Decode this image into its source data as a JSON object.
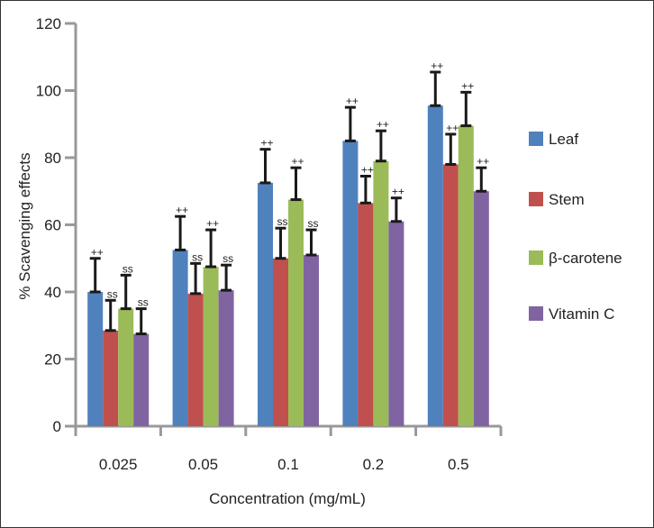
{
  "chart_data": {
    "type": "bar",
    "title": "",
    "xlabel": "Concentration (mg/mL)",
    "ylabel": "% Scavenging effects",
    "ylim": [
      0,
      120
    ],
    "yticks": [
      0,
      20,
      40,
      60,
      80,
      100,
      120
    ],
    "categories": [
      "0.025",
      "0.05",
      "0.1",
      "0.2",
      "0.5"
    ],
    "grid": false,
    "legend_position": "right",
    "series": [
      {
        "name": "Leaf",
        "color": "#4f81bd",
        "values": [
          40,
          52.5,
          72.5,
          85,
          95.5
        ],
        "errors": [
          10,
          10,
          10,
          10,
          10
        ],
        "annotations": [
          "++",
          "++",
          "++",
          "++",
          "++"
        ]
      },
      {
        "name": "Stem",
        "color": "#c0504d",
        "values": [
          28.5,
          39.5,
          50,
          66.5,
          78
        ],
        "errors": [
          9,
          9,
          9,
          8,
          9
        ],
        "annotations": [
          "ss",
          "ss",
          "ss",
          "++",
          "++"
        ]
      },
      {
        "name": "β-carotene",
        "color": "#9bbb59",
        "values": [
          35,
          47.5,
          67.5,
          79,
          89.5
        ],
        "errors": [
          10,
          11,
          9.5,
          9,
          10
        ],
        "annotations": [
          "ss",
          "++",
          "++",
          "++",
          "++"
        ]
      },
      {
        "name": "Vitamin C",
        "color": "#8064a2",
        "values": [
          27.5,
          40.5,
          51,
          61,
          70
        ],
        "errors": [
          7.5,
          7.5,
          7.5,
          7,
          7
        ],
        "annotations": [
          "ss",
          "ss",
          "ss",
          "++",
          "++"
        ]
      }
    ]
  }
}
